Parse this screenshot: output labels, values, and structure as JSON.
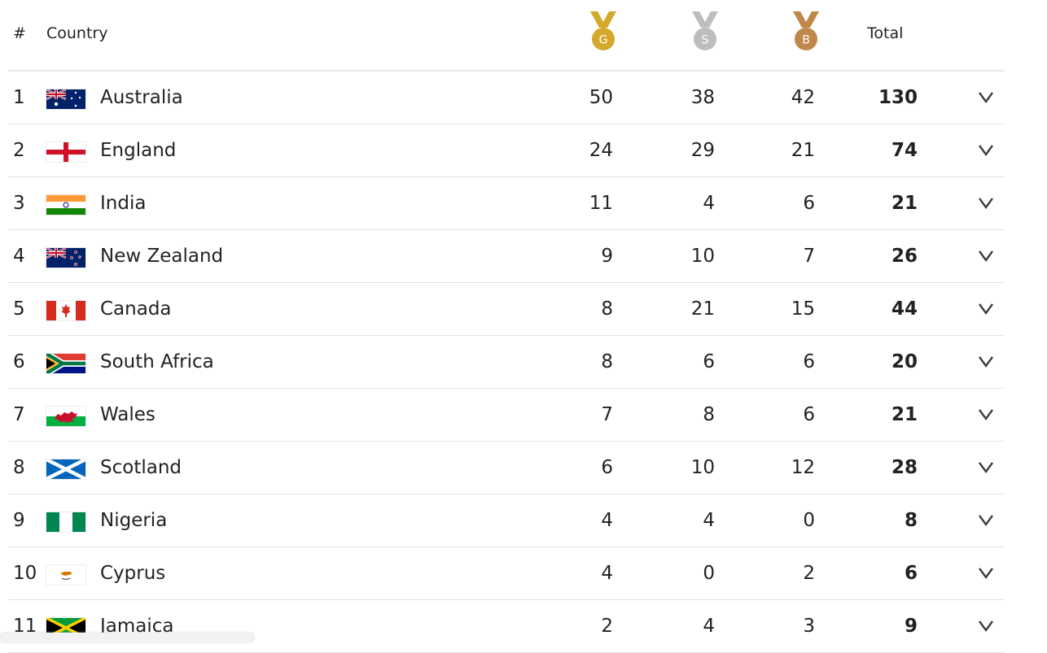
{
  "header": {
    "rank_label": "#",
    "country_label": "Country",
    "gold_letter": "G",
    "silver_letter": "S",
    "bronze_letter": "B",
    "total_label": "Total"
  },
  "colors": {
    "gold": "#d4a82b",
    "silver": "#bdbdbd",
    "bronze": "#c0874a"
  },
  "icons": {
    "expand": "chevron-down-icon"
  },
  "rows": [
    {
      "rank": "1",
      "country": "Australia",
      "flag": "flag-australia",
      "gold": "50",
      "silver": "38",
      "bronze": "42",
      "total": "130"
    },
    {
      "rank": "2",
      "country": "England",
      "flag": "flag-england",
      "gold": "24",
      "silver": "29",
      "bronze": "21",
      "total": "74"
    },
    {
      "rank": "3",
      "country": "India",
      "flag": "flag-india",
      "gold": "11",
      "silver": "4",
      "bronze": "6",
      "total": "21"
    },
    {
      "rank": "4",
      "country": "New Zealand",
      "flag": "flag-new-zealand",
      "gold": "9",
      "silver": "10",
      "bronze": "7",
      "total": "26"
    },
    {
      "rank": "5",
      "country": "Canada",
      "flag": "flag-canada",
      "gold": "8",
      "silver": "21",
      "bronze": "15",
      "total": "44"
    },
    {
      "rank": "6",
      "country": "South Africa",
      "flag": "flag-south-africa",
      "gold": "8",
      "silver": "6",
      "bronze": "6",
      "total": "20"
    },
    {
      "rank": "7",
      "country": "Wales",
      "flag": "flag-wales",
      "gold": "7",
      "silver": "8",
      "bronze": "6",
      "total": "21"
    },
    {
      "rank": "8",
      "country": "Scotland",
      "flag": "flag-scotland",
      "gold": "6",
      "silver": "10",
      "bronze": "12",
      "total": "28"
    },
    {
      "rank": "9",
      "country": "Nigeria",
      "flag": "flag-nigeria",
      "gold": "4",
      "silver": "4",
      "bronze": "0",
      "total": "8"
    },
    {
      "rank": "10",
      "country": "Cyprus",
      "flag": "flag-cyprus",
      "gold": "4",
      "silver": "0",
      "bronze": "2",
      "total": "6"
    },
    {
      "rank": "11",
      "country": "Jamaica",
      "flag": "flag-jamaica",
      "gold": "2",
      "silver": "4",
      "bronze": "3",
      "total": "9"
    }
  ]
}
